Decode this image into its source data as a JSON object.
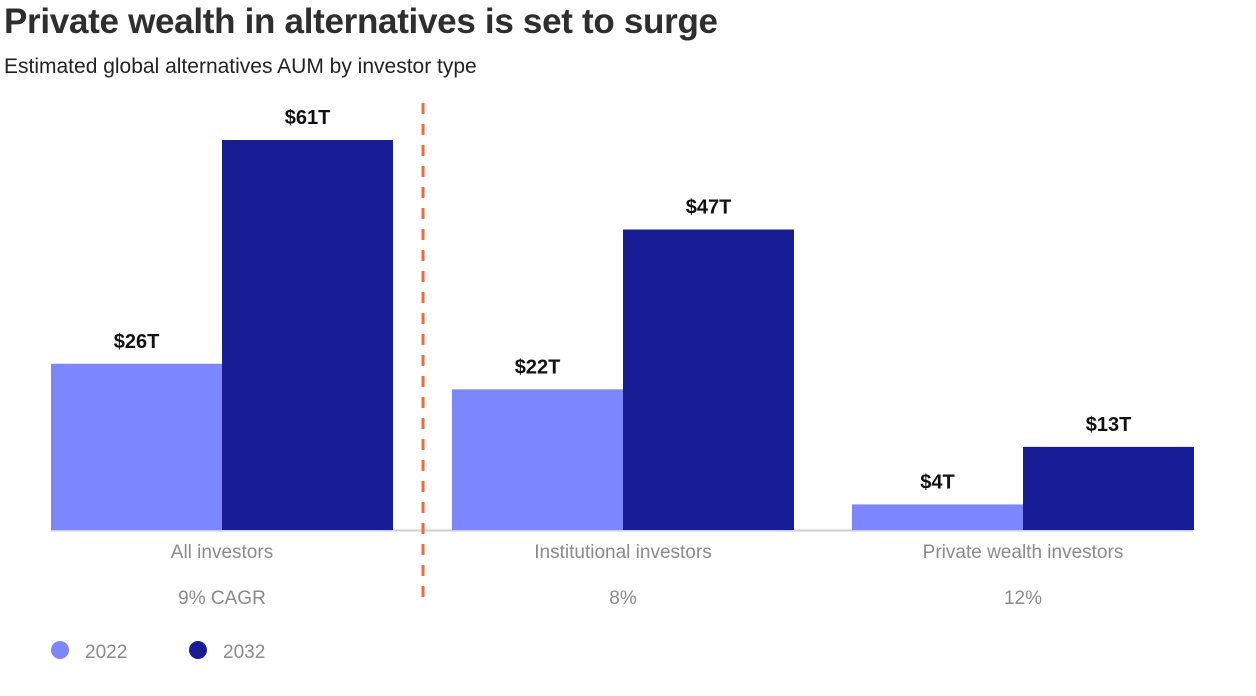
{
  "title": "Private wealth in alternatives is set to surge",
  "subtitle": "Estimated global alternatives AUM by investor type",
  "colors": {
    "series_2022": "#7b86ff",
    "series_2032": "#181c95",
    "divider": "#f26a3b",
    "baseline": "#cfcfcf"
  },
  "chart_data": {
    "type": "bar",
    "categories": [
      "All investors",
      "Institutional investors",
      "Private wealth investors"
    ],
    "series": [
      {
        "name": "2022",
        "values": [
          26,
          22,
          4
        ],
        "labels": [
          "$26T",
          "$22T",
          "$4T"
        ]
      },
      {
        "name": "2032",
        "values": [
          61,
          47,
          13
        ],
        "labels": [
          "$61T",
          "$47T",
          "$13T"
        ]
      }
    ],
    "cagr": [
      "9%  CAGR",
      "8%",
      "12%"
    ],
    "ylim": [
      0,
      61
    ],
    "legend": "bottom-left",
    "grid": false
  }
}
